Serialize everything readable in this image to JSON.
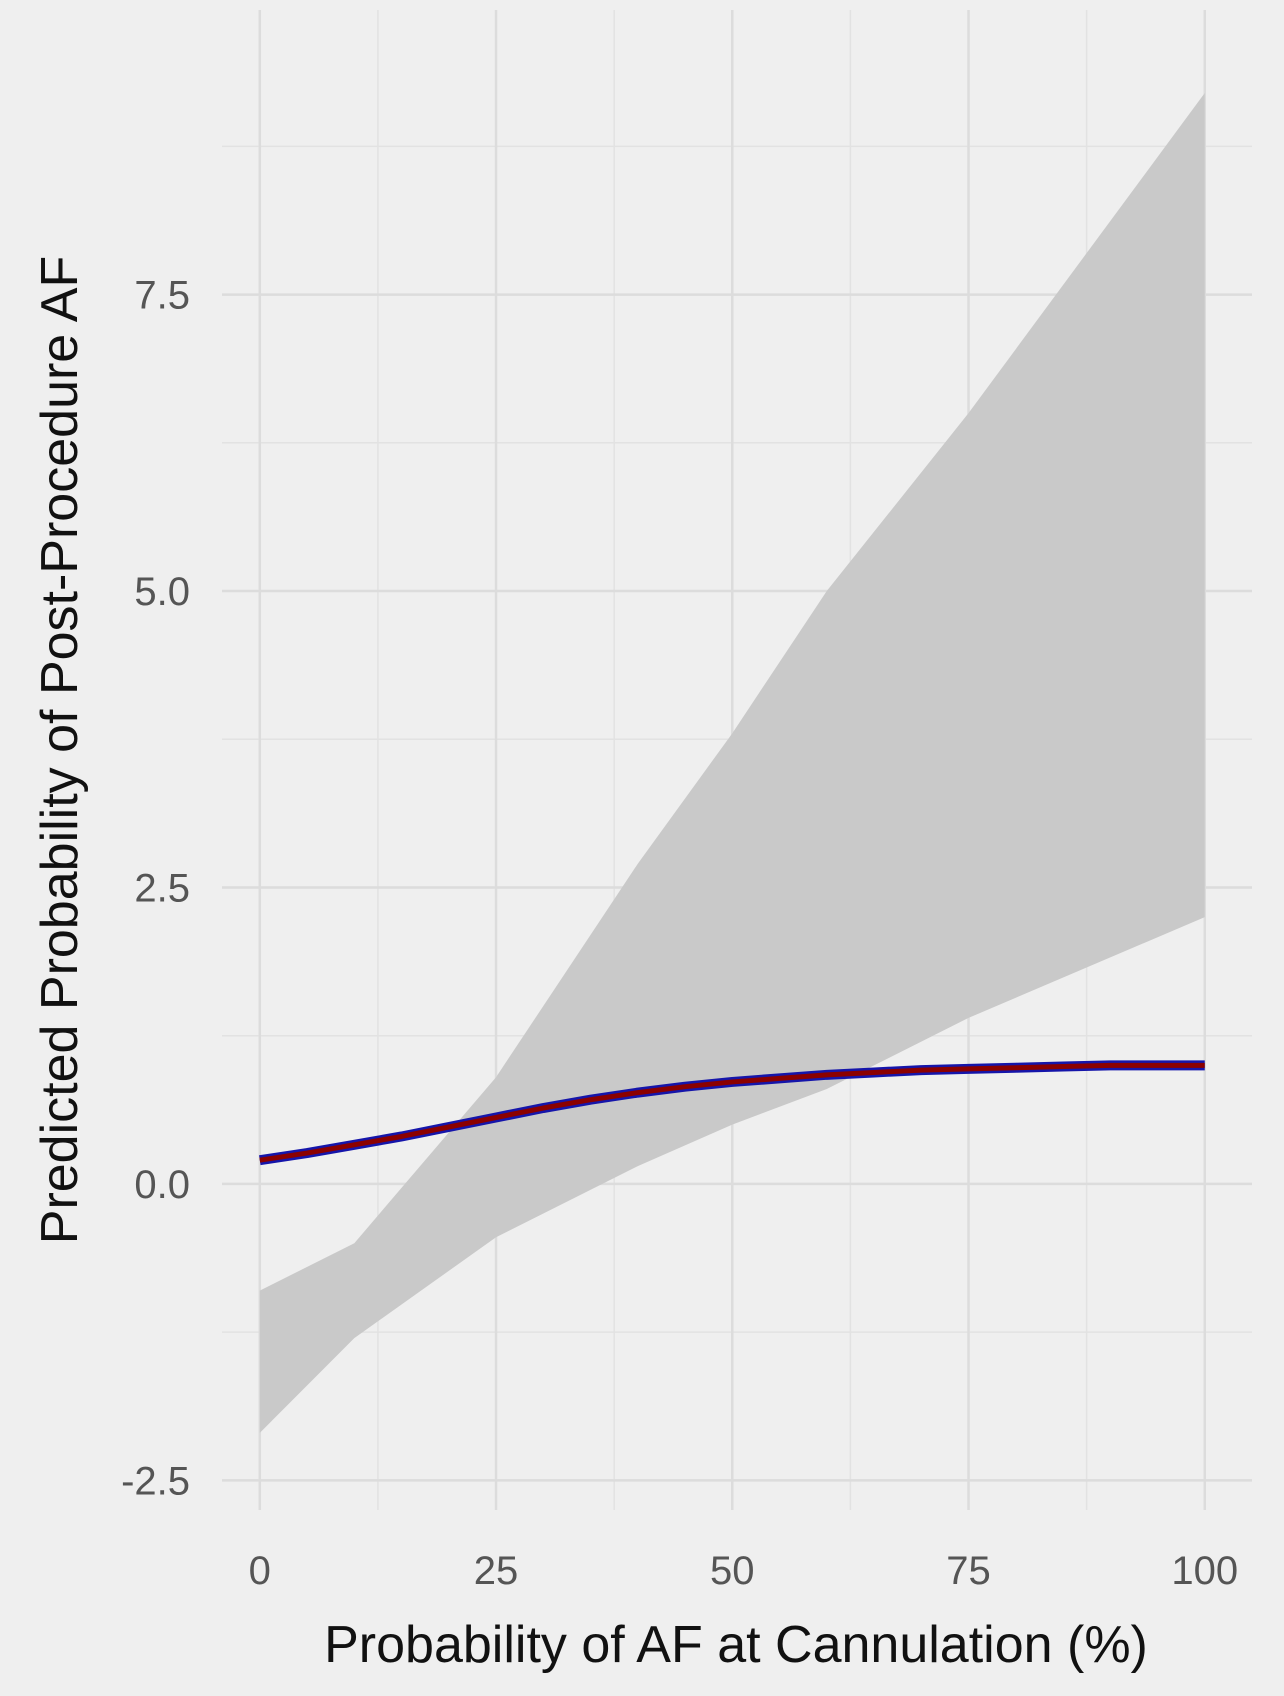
{
  "chart_data": {
    "type": "line",
    "title": "",
    "xlabel": "Probability of AF at Cannulation (%)",
    "ylabel": "Predicted Probability of Post-Procedure AF",
    "xlim": [
      -4,
      105
    ],
    "ylim": [
      -2.75,
      9.9
    ],
    "x_ticks": [
      0,
      25,
      50,
      75,
      100
    ],
    "x_tick_labels": [
      "0",
      "25",
      "50",
      "75",
      "100"
    ],
    "y_ticks": [
      -2.5,
      0.0,
      2.5,
      5.0,
      7.5
    ],
    "y_tick_labels": [
      "-2.5",
      "0.0",
      "2.5",
      "5.0",
      "7.5"
    ],
    "grid": true,
    "series": [
      {
        "type": "band",
        "color": "#c9c9c9",
        "x": [
          0,
          10,
          25,
          40,
          50,
          60,
          75,
          100
        ],
        "upper": [
          -0.9,
          -0.5,
          0.9,
          2.7,
          3.8,
          5.0,
          6.5,
          9.2
        ],
        "lower": [
          -2.1,
          -1.3,
          -0.45,
          0.15,
          0.5,
          0.8,
          1.4,
          2.25
        ]
      },
      {
        "type": "line",
        "colors": [
          "#1515aa",
          "#8b0000"
        ],
        "x": [
          0,
          5,
          10,
          15,
          20,
          25,
          30,
          35,
          40,
          45,
          50,
          55,
          60,
          65,
          70,
          75,
          80,
          85,
          90,
          95,
          100
        ],
        "y": [
          0.2,
          0.26,
          0.33,
          0.4,
          0.48,
          0.56,
          0.64,
          0.71,
          0.77,
          0.82,
          0.86,
          0.89,
          0.92,
          0.94,
          0.96,
          0.97,
          0.98,
          0.99,
          1.0,
          1.0,
          1.0
        ]
      }
    ]
  }
}
